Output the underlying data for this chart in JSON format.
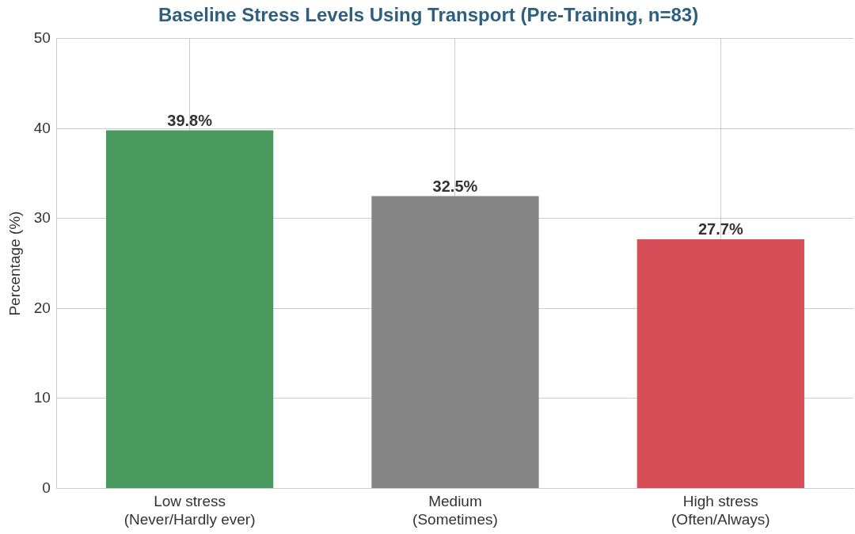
{
  "chart_data": {
    "type": "bar",
    "title": "Baseline Stress Levels Using Transport (Pre-Training, n=83)",
    "ylabel": "Percentage (%)",
    "categories": [
      "Low stress\n(Never/Hardly ever)",
      "Medium\n(Sometimes)",
      "High stress\n(Often/Always)"
    ],
    "values": [
      39.8,
      32.5,
      27.7
    ],
    "colors": [
      "#4a9a60",
      "#858585",
      "#d64f58"
    ],
    "value_labels": [
      "39.8%",
      "32.5%",
      "27.7%"
    ],
    "ylim": [
      0,
      50
    ],
    "yticks": [
      0,
      10,
      20,
      30,
      40,
      50
    ],
    "grid": true,
    "legend": false
  }
}
